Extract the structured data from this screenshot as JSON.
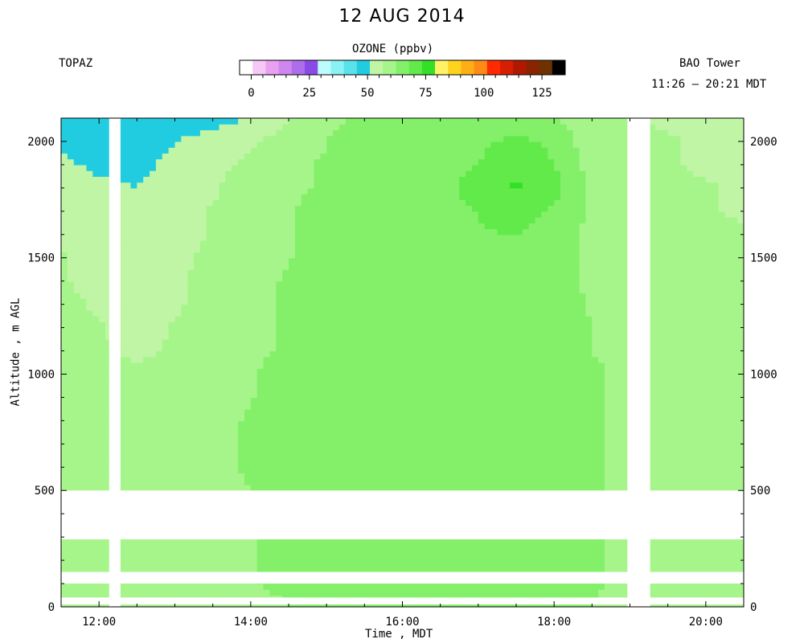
{
  "chart_data": {
    "type": "heatmap",
    "title": "12 AUG 2014",
    "left_label": "TOPAZ",
    "right_label": "BAO Tower",
    "time_range_label": "11:26 – 20:21 MDT",
    "xlabel": "Time , MDT",
    "ylabel": "Altitude , m AGL",
    "xlim": [
      "11:30",
      "20:30"
    ],
    "x_ticks": [
      "12:00",
      "14:00",
      "16:00",
      "18:00",
      "20:00"
    ],
    "ylim": [
      0,
      2100
    ],
    "y_ticks": [
      0,
      500,
      1000,
      1500,
      2000
    ],
    "grid": false,
    "colorbar": {
      "label": "OZONE (ppbv)",
      "range": [
        -5,
        135
      ],
      "tick_values": [
        0,
        25,
        50,
        75,
        100,
        125
      ],
      "tick_labels": [
        "0",
        "25",
        "50",
        "75",
        "100",
        "125"
      ],
      "colors": [
        "#ffffff",
        "#f6c8f6",
        "#e9a0f0",
        "#cf86ee",
        "#ae6eeb",
        "#8a4ae6",
        "#bdfcfc",
        "#8af2f4",
        "#59e2ea",
        "#22cce0",
        "#bff5a4",
        "#a6f58a",
        "#84f06a",
        "#61ea4a",
        "#33e026",
        "#fff266",
        "#ffd21e",
        "#ffae16",
        "#ff8a16",
        "#ff2a00",
        "#d71e00",
        "#b01800",
        "#8a2400",
        "#6e3200",
        "#000000"
      ]
    },
    "x": [
      "11:30",
      "12:00",
      "12:30",
      "13:00",
      "13:30",
      "14:00",
      "14:30",
      "15:00",
      "15:30",
      "16:00",
      "16:30",
      "17:00",
      "17:30",
      "18:00",
      "18:30",
      "19:00",
      "19:30",
      "20:00",
      "20:30"
    ],
    "y": [
      0,
      100,
      200,
      300,
      400,
      500,
      600,
      700,
      800,
      900,
      1000,
      1100,
      1200,
      1300,
      1400,
      1500,
      1600,
      1700,
      1800,
      1900,
      2000,
      2100
    ],
    "z_unit": "ppbv",
    "z": [
      [
        62,
        60,
        58,
        58,
        59,
        61,
        62,
        63,
        65,
        65,
        64,
        63,
        64,
        65,
        62,
        60,
        60,
        59,
        58
      ],
      [
        62,
        61,
        59,
        59,
        60,
        62,
        63,
        64,
        66,
        66,
        65,
        64,
        65,
        66,
        63,
        61,
        61,
        60,
        59
      ],
      [
        62,
        61,
        59,
        59,
        60,
        62,
        63,
        64,
        66,
        66,
        65,
        64,
        65,
        66,
        63,
        61,
        61,
        60,
        59
      ],
      [
        62,
        61,
        59,
        59,
        60,
        62,
        63,
        64,
        66,
        66,
        65,
        64,
        65,
        66,
        63,
        61,
        61,
        60,
        59
      ],
      [
        62,
        61,
        59,
        59,
        60,
        62,
        63,
        64,
        66,
        66,
        65,
        64,
        65,
        66,
        63,
        61,
        61,
        60,
        59
      ],
      [
        62,
        61,
        59,
        59,
        60,
        62,
        63,
        64,
        66,
        66,
        65,
        64,
        65,
        66,
        63,
        61,
        61,
        60,
        59
      ],
      [
        61,
        60,
        58,
        59,
        61,
        63,
        64,
        65,
        67,
        66,
        65,
        65,
        66,
        66,
        63,
        61,
        61,
        60,
        59
      ],
      [
        61,
        60,
        58,
        59,
        61,
        63,
        64,
        65,
        67,
        66,
        65,
        65,
        66,
        66,
        63,
        61,
        61,
        60,
        59
      ],
      [
        60,
        59,
        57,
        58,
        60,
        63,
        64,
        65,
        67,
        67,
        66,
        66,
        66,
        66,
        63,
        61,
        60,
        60,
        59
      ],
      [
        60,
        58,
        57,
        58,
        60,
        62,
        64,
        66,
        67,
        67,
        66,
        66,
        66,
        66,
        63,
        61,
        60,
        59,
        58
      ],
      [
        60,
        58,
        57,
        58,
        60,
        62,
        64,
        66,
        67,
        67,
        66,
        66,
        66,
        65,
        63,
        61,
        60,
        59,
        58
      ],
      [
        59,
        57,
        56,
        57,
        59,
        61,
        63,
        65,
        67,
        67,
        66,
        66,
        66,
        65,
        62,
        61,
        60,
        59,
        58
      ],
      [
        58,
        57,
        55,
        57,
        59,
        61,
        63,
        65,
        67,
        67,
        66,
        66,
        66,
        65,
        62,
        60,
        60,
        59,
        58
      ],
      [
        58,
        56,
        55,
        56,
        58,
        61,
        63,
        65,
        67,
        67,
        66,
        66,
        66,
        64,
        62,
        60,
        59,
        59,
        58
      ],
      [
        57,
        55,
        54,
        56,
        58,
        60,
        63,
        65,
        67,
        67,
        66,
        66,
        66,
        64,
        61,
        60,
        59,
        58,
        57
      ],
      [
        57,
        55,
        53,
        55,
        58,
        60,
        62,
        64,
        67,
        66,
        66,
        66,
        67,
        64,
        61,
        60,
        59,
        58,
        57
      ],
      [
        56,
        54,
        53,
        55,
        57,
        60,
        62,
        64,
        66,
        66,
        66,
        67,
        68,
        65,
        61,
        59,
        58,
        58,
        57
      ],
      [
        55,
        53,
        52,
        54,
        57,
        59,
        62,
        64,
        66,
        66,
        66,
        68,
        71,
        67,
        61,
        59,
        58,
        57,
        56
      ],
      [
        54,
        52,
        51,
        53,
        56,
        59,
        61,
        63,
        66,
        66,
        66,
        70,
        74,
        70,
        61,
        58,
        57,
        57,
        56
      ],
      [
        52,
        50,
        50,
        52,
        55,
        58,
        61,
        63,
        67,
        66,
        66,
        68,
        73,
        68,
        60,
        58,
        57,
        56,
        56
      ],
      [
        50,
        48,
        49,
        51,
        54,
        56,
        59,
        62,
        68,
        66,
        65,
        66,
        70,
        66,
        59,
        57,
        57,
        56,
        55
      ],
      [
        47,
        45,
        46,
        47,
        48,
        52,
        56,
        60,
        63,
        64,
        63,
        63,
        64,
        63,
        58,
        57,
        56,
        55,
        55
      ]
    ],
    "missing_time_ranges": [
      [
        "12:08",
        "12:17"
      ],
      [
        "18:58",
        "19:16"
      ]
    ],
    "missing_altitude_ranges": [
      [
        10,
        40
      ],
      [
        100,
        150
      ],
      [
        290,
        500
      ]
    ]
  }
}
